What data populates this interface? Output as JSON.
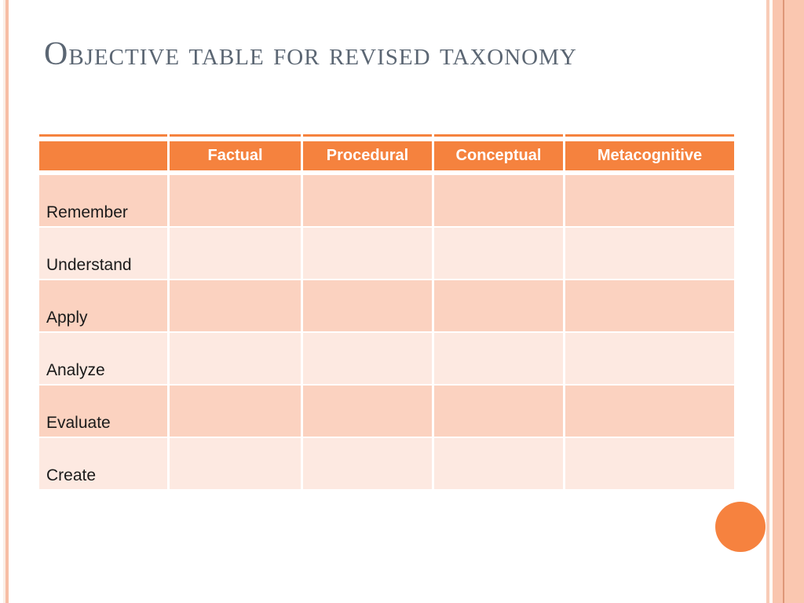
{
  "slide": {
    "title": "Objective table for revised taxonomy",
    "table": {
      "corner_label": "",
      "columns": [
        "Factual",
        "Procedural",
        "Conceptual",
        "Metacognitive"
      ],
      "rows": [
        {
          "label": "Remember",
          "cells": [
            "",
            "",
            "",
            ""
          ]
        },
        {
          "label": "Understand",
          "cells": [
            "",
            "",
            "",
            ""
          ]
        },
        {
          "label": "Apply",
          "cells": [
            "",
            "",
            "",
            ""
          ]
        },
        {
          "label": "Analyze",
          "cells": [
            "",
            "",
            "",
            ""
          ]
        },
        {
          "label": "Evaluate",
          "cells": [
            "",
            "",
            "",
            ""
          ]
        },
        {
          "label": "Create",
          "cells": [
            "",
            "",
            "",
            ""
          ]
        }
      ]
    },
    "colors": {
      "title_text": "#5B6673",
      "header_bg": "#F5823E",
      "header_text": "#FFFFFF",
      "row_dark_bg": "#FBD2C0",
      "row_light_bg": "#FDE9E1",
      "row_text": "#1A1A1A",
      "circle": "#F6823F",
      "stripe_cream": "#FBEFE7",
      "stripe_salmon": "#F7BEA5",
      "right_band_light": "#F8CBB6",
      "right_band_gap": "#FEFAF6",
      "right_band_mid": "#F9C5AE",
      "right_band_dark_line": "#DE9778",
      "right_band_outer": "#FAC7B0"
    }
  }
}
